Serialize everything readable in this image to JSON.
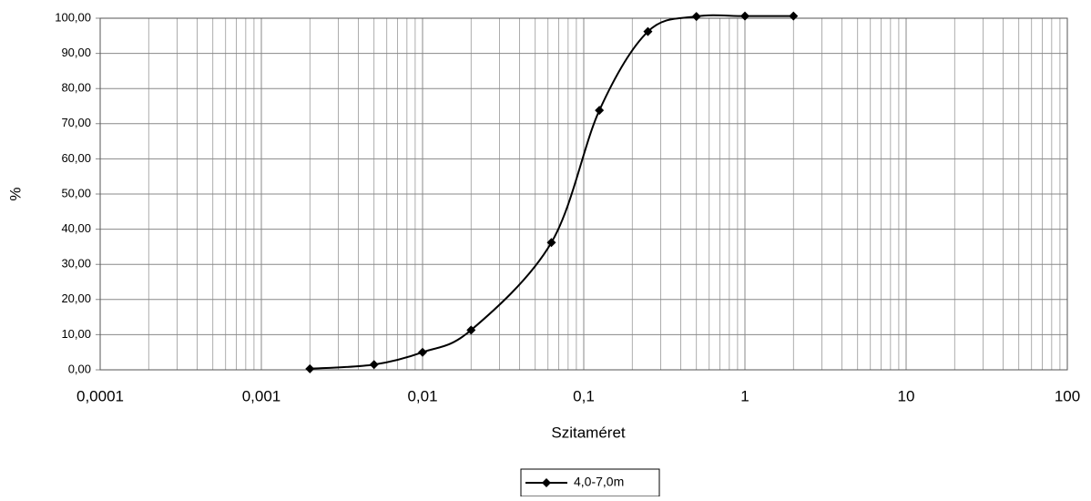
{
  "chart_data": {
    "type": "line",
    "xlabel": "Szitaméret",
    "ylabel": "%",
    "xscale": "log",
    "xlim": [
      0.0001,
      100
    ],
    "ylim": [
      0,
      100
    ],
    "xticks": [
      {
        "value": 0.0001,
        "label": "0,0001"
      },
      {
        "value": 0.001,
        "label": "0,001"
      },
      {
        "value": 0.01,
        "label": "0,01"
      },
      {
        "value": 0.1,
        "label": "0,1"
      },
      1,
      10,
      100
    ],
    "yticks": [
      {
        "value": 0,
        "label": "0,00"
      },
      {
        "value": 10,
        "label": "10,00"
      },
      {
        "value": 20,
        "label": "20,00"
      },
      {
        "value": 30,
        "label": "30,00"
      },
      {
        "value": 40,
        "label": "40,00"
      },
      {
        "value": 50,
        "label": "50,00"
      },
      {
        "value": 60,
        "label": "60,00"
      },
      {
        "value": 70,
        "label": "70,00"
      },
      {
        "value": 80,
        "label": "80,00"
      },
      {
        "value": 90,
        "label": "90,00"
      },
      {
        "value": 100,
        "label": "100,00"
      }
    ],
    "grid": true,
    "legend": "bottom",
    "x": [
      0.002,
      0.005,
      0.01,
      0.02,
      0.063,
      0.125,
      0.25,
      0.5,
      1,
      2
    ],
    "series": [
      {
        "name": "4,0-7,0m",
        "color": "#000000",
        "values": [
          0.3,
          1.5,
          5.0,
          11.3,
          36.2,
          73.8,
          96.2,
          100.5,
          100.6,
          100.6
        ]
      }
    ]
  }
}
